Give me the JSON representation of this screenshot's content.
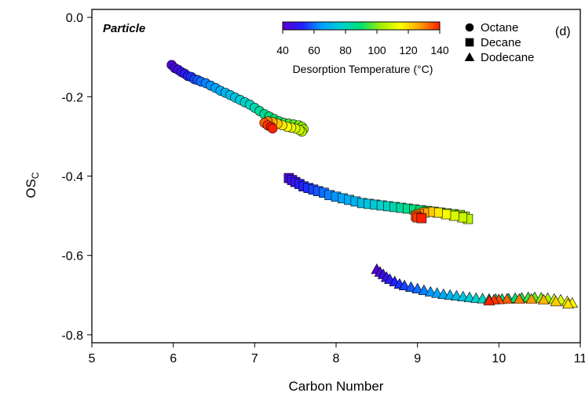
{
  "chart_data": {
    "type": "scatter",
    "panel_text": "Particle",
    "panel_tag": "(d)",
    "xlabel": "Carbon Number",
    "ylabel": {
      "main": "OS",
      "sub": "C"
    },
    "xlim": [
      5,
      11
    ],
    "ylim": [
      -0.82,
      0.02
    ],
    "xticks": [
      5,
      6,
      7,
      8,
      9,
      10,
      11
    ],
    "yticks": [
      0.0,
      -0.2,
      -0.4,
      -0.6,
      -0.8
    ],
    "ytick_labels": [
      "0.0",
      "-0.2",
      "-0.4",
      "-0.6",
      "-0.8"
    ],
    "grid": false,
    "colorbar": {
      "title": "Desorption Temperature (°C)",
      "range": [
        40,
        140
      ],
      "ticks": [
        40,
        60,
        80,
        100,
        120,
        140
      ],
      "colormap": [
        "#5a00c8",
        "#2020ff",
        "#00a0ff",
        "#00d0d0",
        "#00e070",
        "#a0f000",
        "#ffff00",
        "#ffa000",
        "#ff2000"
      ]
    },
    "legend_location": "top-right",
    "series": [
      {
        "name": "Octane",
        "marker": "circle",
        "points": [
          [
            5.98,
            -0.12,
            42
          ],
          [
            6.02,
            -0.128,
            44
          ],
          [
            6.06,
            -0.132,
            46
          ],
          [
            6.1,
            -0.138,
            48
          ],
          [
            6.14,
            -0.142,
            50
          ],
          [
            6.18,
            -0.148,
            52
          ],
          [
            6.22,
            -0.15,
            54
          ],
          [
            6.26,
            -0.156,
            56
          ],
          [
            6.3,
            -0.158,
            58
          ],
          [
            6.34,
            -0.162,
            60
          ],
          [
            6.4,
            -0.166,
            62
          ],
          [
            6.46,
            -0.172,
            64
          ],
          [
            6.52,
            -0.178,
            66
          ],
          [
            6.58,
            -0.185,
            68
          ],
          [
            6.64,
            -0.19,
            70
          ],
          [
            6.7,
            -0.196,
            72
          ],
          [
            6.76,
            -0.202,
            74
          ],
          [
            6.82,
            -0.208,
            76
          ],
          [
            6.88,
            -0.214,
            78
          ],
          [
            6.94,
            -0.22,
            80
          ],
          [
            7.0,
            -0.228,
            82
          ],
          [
            7.06,
            -0.236,
            84
          ],
          [
            7.12,
            -0.244,
            86
          ],
          [
            7.18,
            -0.25,
            88
          ],
          [
            7.24,
            -0.256,
            90
          ],
          [
            7.3,
            -0.262,
            92
          ],
          [
            7.36,
            -0.266,
            94
          ],
          [
            7.42,
            -0.268,
            96
          ],
          [
            7.48,
            -0.27,
            98
          ],
          [
            7.54,
            -0.272,
            100
          ],
          [
            7.58,
            -0.276,
            102
          ],
          [
            7.6,
            -0.282,
            104
          ],
          [
            7.58,
            -0.288,
            106
          ],
          [
            7.55,
            -0.284,
            108
          ],
          [
            7.5,
            -0.28,
            110
          ],
          [
            7.45,
            -0.278,
            112
          ],
          [
            7.4,
            -0.276,
            114
          ],
          [
            7.34,
            -0.272,
            118
          ],
          [
            7.28,
            -0.268,
            122
          ],
          [
            7.22,
            -0.264,
            126
          ],
          [
            7.16,
            -0.262,
            130
          ],
          [
            7.12,
            -0.266,
            134
          ],
          [
            7.16,
            -0.272,
            138
          ],
          [
            7.2,
            -0.276,
            140
          ],
          [
            7.22,
            -0.28,
            140
          ]
        ]
      },
      {
        "name": "Decane",
        "marker": "square",
        "points": [
          [
            7.42,
            -0.405,
            44
          ],
          [
            7.46,
            -0.41,
            46
          ],
          [
            7.5,
            -0.415,
            48
          ],
          [
            7.55,
            -0.42,
            50
          ],
          [
            7.6,
            -0.426,
            52
          ],
          [
            7.66,
            -0.43,
            54
          ],
          [
            7.72,
            -0.434,
            56
          ],
          [
            7.78,
            -0.438,
            58
          ],
          [
            7.85,
            -0.442,
            60
          ],
          [
            7.92,
            -0.448,
            62
          ],
          [
            8.0,
            -0.452,
            64
          ],
          [
            8.08,
            -0.456,
            66
          ],
          [
            8.16,
            -0.46,
            68
          ],
          [
            8.24,
            -0.464,
            70
          ],
          [
            8.32,
            -0.468,
            72
          ],
          [
            8.4,
            -0.47,
            74
          ],
          [
            8.48,
            -0.472,
            76
          ],
          [
            8.56,
            -0.474,
            78
          ],
          [
            8.64,
            -0.476,
            80
          ],
          [
            8.72,
            -0.478,
            82
          ],
          [
            8.8,
            -0.48,
            84
          ],
          [
            8.88,
            -0.482,
            86
          ],
          [
            8.96,
            -0.484,
            88
          ],
          [
            9.04,
            -0.486,
            90
          ],
          [
            9.12,
            -0.488,
            92
          ],
          [
            9.2,
            -0.49,
            94
          ],
          [
            9.28,
            -0.492,
            96
          ],
          [
            9.36,
            -0.494,
            98
          ],
          [
            9.44,
            -0.496,
            100
          ],
          [
            9.52,
            -0.498,
            102
          ],
          [
            9.58,
            -0.502,
            104
          ],
          [
            9.62,
            -0.508,
            106
          ],
          [
            9.55,
            -0.504,
            108
          ],
          [
            9.45,
            -0.5,
            110
          ],
          [
            9.35,
            -0.496,
            114
          ],
          [
            9.25,
            -0.492,
            118
          ],
          [
            9.15,
            -0.49,
            122
          ],
          [
            9.08,
            -0.492,
            126
          ],
          [
            9.02,
            -0.496,
            130
          ],
          [
            8.98,
            -0.5,
            134
          ],
          [
            9.0,
            -0.504,
            138
          ],
          [
            9.05,
            -0.506,
            140
          ]
        ]
      },
      {
        "name": "Dodecane",
        "marker": "triangle",
        "points": [
          [
            8.5,
            -0.635,
            42
          ],
          [
            8.54,
            -0.642,
            44
          ],
          [
            8.58,
            -0.648,
            46
          ],
          [
            8.62,
            -0.655,
            48
          ],
          [
            8.66,
            -0.66,
            50
          ],
          [
            8.72,
            -0.666,
            52
          ],
          [
            8.78,
            -0.672,
            54
          ],
          [
            8.84,
            -0.676,
            56
          ],
          [
            8.92,
            -0.68,
            58
          ],
          [
            9.0,
            -0.684,
            60
          ],
          [
            9.08,
            -0.688,
            62
          ],
          [
            9.16,
            -0.692,
            64
          ],
          [
            9.24,
            -0.695,
            66
          ],
          [
            9.32,
            -0.698,
            68
          ],
          [
            9.4,
            -0.7,
            70
          ],
          [
            9.48,
            -0.702,
            72
          ],
          [
            9.56,
            -0.704,
            74
          ],
          [
            9.64,
            -0.706,
            76
          ],
          [
            9.72,
            -0.708,
            78
          ],
          [
            9.8,
            -0.709,
            80
          ],
          [
            9.88,
            -0.71,
            82
          ],
          [
            9.96,
            -0.71,
            84
          ],
          [
            10.04,
            -0.71,
            86
          ],
          [
            10.12,
            -0.709,
            88
          ],
          [
            10.2,
            -0.708,
            90
          ],
          [
            10.28,
            -0.707,
            92
          ],
          [
            10.36,
            -0.706,
            95
          ],
          [
            10.44,
            -0.706,
            98
          ],
          [
            10.52,
            -0.707,
            101
          ],
          [
            10.6,
            -0.708,
            104
          ],
          [
            10.68,
            -0.71,
            107
          ],
          [
            10.76,
            -0.712,
            110
          ],
          [
            10.84,
            -0.716,
            113
          ],
          [
            10.9,
            -0.72,
            116
          ],
          [
            10.85,
            -0.722,
            119
          ],
          [
            10.7,
            -0.716,
            122
          ],
          [
            10.55,
            -0.712,
            125
          ],
          [
            10.4,
            -0.71,
            128
          ],
          [
            10.25,
            -0.71,
            131
          ],
          [
            10.1,
            -0.71,
            134
          ],
          [
            10.0,
            -0.711,
            136
          ],
          [
            9.94,
            -0.712,
            138
          ],
          [
            9.88,
            -0.714,
            140
          ]
        ]
      }
    ]
  }
}
